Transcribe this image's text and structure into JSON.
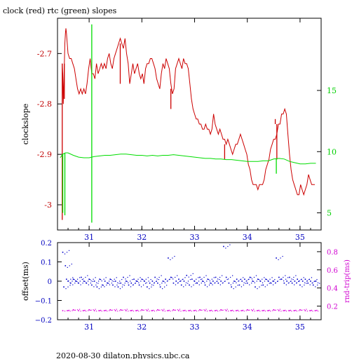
{
  "title": "clock (red) rtc (green) slopes",
  "footer": "2020-08-30  dilaton.physics.ubc.ca",
  "chart_data": [
    {
      "type": "line",
      "title": "clock (red) rtc (green) slopes",
      "xlabel": "",
      "ylabel": "clockslope",
      "y2label": "",
      "xlim": [
        30.4,
        35.4
      ],
      "ylim": [
        -3.05,
        -2.63
      ],
      "y2lim": [
        3.6,
        20.9
      ],
      "x_ticks": [
        "31",
        "32",
        "33",
        "34",
        "35"
      ],
      "y_ticks": [
        "-2.7",
        "-2.8",
        "-2.9",
        "-3"
      ],
      "y2_ticks": [
        "15",
        "10",
        "5"
      ],
      "colors": {
        "clock": "#cc0000",
        "rtc": "#00dd00"
      },
      "series": [
        {
          "axis": "left",
          "color": "#cc0000",
          "x": [
            30.49,
            30.5,
            30.51,
            30.52,
            30.53,
            30.54,
            30.55,
            30.56,
            30.57,
            30.6,
            30.63,
            30.66,
            30.69,
            30.72,
            30.75,
            30.78,
            30.81,
            30.84,
            30.87,
            30.9,
            30.93,
            30.96,
            30.99,
            31.02,
            31.05,
            31.08,
            31.11,
            31.14,
            31.17,
            31.2,
            31.23,
            31.26,
            31.29,
            31.32,
            31.35,
            31.38,
            31.41,
            31.44,
            31.47,
            31.5,
            31.53,
            31.56,
            31.59,
            31.62,
            31.65,
            31.68,
            31.71,
            31.74,
            31.77,
            31.8,
            31.83,
            31.86,
            31.89,
            31.92,
            31.95,
            31.98,
            32.01,
            32.04,
            32.07,
            32.1,
            32.13,
            32.16,
            32.19,
            32.22,
            32.25,
            32.28,
            32.31,
            32.34,
            32.37,
            32.4,
            32.43,
            32.46,
            32.49,
            32.52,
            32.55,
            32.58,
            32.61,
            32.64,
            32.67,
            32.7,
            32.73,
            32.76,
            32.79,
            32.82,
            32.85,
            32.88,
            32.91,
            32.94,
            32.97,
            33.0,
            33.03,
            33.06,
            33.09,
            33.12,
            33.15,
            33.18,
            33.21,
            33.24,
            33.27,
            33.3,
            33.33,
            33.36,
            33.39,
            33.42,
            33.45,
            33.48,
            33.51,
            33.54,
            33.57,
            33.6,
            33.63,
            33.66,
            33.69,
            33.72,
            33.75,
            33.78,
            33.81,
            33.84,
            33.87,
            33.9,
            33.93,
            33.96,
            33.99,
            34.02,
            34.05,
            34.08,
            34.11,
            34.14,
            34.17,
            34.2,
            34.23,
            34.26,
            34.29,
            34.32,
            34.35,
            34.38,
            34.41,
            34.44,
            34.47,
            34.5,
            34.53,
            34.56,
            34.59,
            34.62,
            34.65,
            34.68,
            34.71,
            34.74,
            34.77,
            34.8,
            34.83,
            34.86,
            34.89,
            34.92,
            34.95,
            34.98,
            35.01,
            35.04,
            35.07,
            35.1,
            35.13,
            35.16,
            35.19,
            35.22,
            35.25,
            35.28
          ],
          "y": [
            -2.72,
            -2.74,
            -2.8,
            -2.76,
            -2.72,
            -2.68,
            -2.66,
            -2.65,
            -2.66,
            -2.7,
            -2.71,
            -2.71,
            -2.72,
            -2.73,
            -2.75,
            -2.77,
            -2.78,
            -2.77,
            -2.78,
            -2.77,
            -2.78,
            -2.76,
            -2.73,
            -2.71,
            -2.74,
            -2.74,
            -2.75,
            -2.72,
            -2.74,
            -2.73,
            -2.72,
            -2.73,
            -2.72,
            -2.73,
            -2.71,
            -2.7,
            -2.72,
            -2.73,
            -2.71,
            -2.7,
            -2.69,
            -2.68,
            -2.67,
            -2.68,
            -2.69,
            -2.67,
            -2.7,
            -2.72,
            -2.76,
            -2.74,
            -2.72,
            -2.74,
            -2.73,
            -2.72,
            -2.74,
            -2.75,
            -2.74,
            -2.76,
            -2.73,
            -2.72,
            -2.72,
            -2.71,
            -2.71,
            -2.72,
            -2.73,
            -2.75,
            -2.76,
            -2.77,
            -2.74,
            -2.72,
            -2.73,
            -2.71,
            -2.72,
            -2.73,
            -2.76,
            -2.78,
            -2.77,
            -2.73,
            -2.72,
            -2.71,
            -2.72,
            -2.73,
            -2.71,
            -2.72,
            -2.72,
            -2.73,
            -2.76,
            -2.79,
            -2.81,
            -2.82,
            -2.83,
            -2.83,
            -2.84,
            -2.84,
            -2.85,
            -2.85,
            -2.84,
            -2.85,
            -2.85,
            -2.86,
            -2.85,
            -2.82,
            -2.84,
            -2.85,
            -2.86,
            -2.85,
            -2.86,
            -2.87,
            -2.87,
            -2.88,
            -2.87,
            -2.88,
            -2.89,
            -2.9,
            -2.89,
            -2.88,
            -2.88,
            -2.87,
            -2.86,
            -2.87,
            -2.88,
            -2.89,
            -2.9,
            -2.92,
            -2.93,
            -2.95,
            -2.96,
            -2.96,
            -2.96,
            -2.97,
            -2.96,
            -2.96,
            -2.96,
            -2.95,
            -2.93,
            -2.92,
            -2.91,
            -2.89,
            -2.88,
            -2.87,
            -2.87,
            -2.86,
            -2.84,
            -2.84,
            -2.82,
            -2.82,
            -2.81,
            -2.82,
            -2.86,
            -2.9,
            -2.93,
            -2.95,
            -2.96,
            -2.97,
            -2.98,
            -2.98,
            -2.96,
            -2.97,
            -2.98,
            -2.97,
            -2.96,
            -2.94,
            -2.95,
            -2.96,
            -2.96,
            -2.96
          ],
          "spikes": [
            {
              "x": 30.49,
              "from": -2.72,
              "to": -3.03
            },
            {
              "x": 30.53,
              "from": -2.72,
              "to": -2.79
            },
            {
              "x": 31.59,
              "from": -2.68,
              "to": -2.76
            },
            {
              "x": 32.55,
              "from": -2.77,
              "to": -2.81
            },
            {
              "x": 33.57,
              "from": -2.88,
              "to": -2.91
            },
            {
              "x": 34.53,
              "from": -2.84,
              "to": -2.83
            },
            {
              "x": 34.56,
              "from": -2.84,
              "to": -2.91
            }
          ]
        },
        {
          "axis": "right",
          "color": "#00dd00",
          "x": [
            30.45,
            30.5,
            30.55,
            30.6,
            30.7,
            30.8,
            30.9,
            31.0,
            31.1,
            31.2,
            31.3,
            31.4,
            31.5,
            31.6,
            31.7,
            31.8,
            31.9,
            32.0,
            32.1,
            32.2,
            32.3,
            32.4,
            32.5,
            32.6,
            32.7,
            32.8,
            32.9,
            33.0,
            33.1,
            33.2,
            33.3,
            33.4,
            33.5,
            33.6,
            33.7,
            33.8,
            33.9,
            34.0,
            34.1,
            34.2,
            34.3,
            34.4,
            34.5,
            34.6,
            34.7,
            34.8,
            34.9,
            35.0,
            35.1,
            35.2,
            35.3
          ],
          "y": [
            9.5,
            9.8,
            9.9,
            9.9,
            9.7,
            9.55,
            9.5,
            9.5,
            9.6,
            9.65,
            9.7,
            9.7,
            9.75,
            9.8,
            9.8,
            9.75,
            9.7,
            9.7,
            9.65,
            9.7,
            9.65,
            9.7,
            9.7,
            9.75,
            9.7,
            9.65,
            9.6,
            9.55,
            9.5,
            9.45,
            9.45,
            9.4,
            9.4,
            9.35,
            9.35,
            9.3,
            9.25,
            9.2,
            9.2,
            9.2,
            9.25,
            9.25,
            9.4,
            9.45,
            9.4,
            9.2,
            9.1,
            9.0,
            9.0,
            9.05,
            9.05
          ],
          "spikes": [
            {
              "x": 30.5,
              "from": 9.8,
              "to": 5.0
            },
            {
              "x": 30.54,
              "from": 9.9,
              "to": 4.8
            },
            {
              "x": 31.05,
              "from": 9.5,
              "to": 20.4
            },
            {
              "x": 31.05,
              "from": 9.5,
              "to": 4.2
            },
            {
              "x": 34.55,
              "from": 9.4,
              "to": 8.2
            }
          ]
        }
      ]
    },
    {
      "type": "scatter",
      "xlabel": "",
      "ylabel": "offset(ms)",
      "y2label": "rnd-trip(ms)",
      "xlim": [
        30.4,
        35.4
      ],
      "ylim": [
        -0.2,
        0.2
      ],
      "y2lim": [
        0.05,
        0.9
      ],
      "x_ticks": [
        "31",
        "32",
        "33",
        "34",
        "35"
      ],
      "y_ticks": [
        "0.2",
        "0.1",
        "0",
        "−0.1",
        "−0.2"
      ],
      "y2_ticks": [
        "0.8",
        "0.6",
        "0.4",
        "0.2"
      ],
      "colors": {
        "offset": "#0000cc",
        "roundtrip": "#dd00dd"
      },
      "series": [
        {
          "axis": "left",
          "color": "#0000cc",
          "x": [
            30.5,
            30.52,
            30.55,
            30.57,
            30.6,
            30.65,
            30.7,
            30.75,
            30.8,
            30.85,
            30.9,
            30.95,
            31.0,
            31.05,
            31.1,
            31.15,
            31.2,
            31.25,
            31.3,
            31.35,
            31.4,
            31.45,
            31.5,
            31.55,
            31.6,
            31.65,
            31.7,
            31.75,
            31.8,
            31.85,
            31.9,
            31.95,
            32.0,
            32.05,
            32.1,
            32.15,
            32.2,
            32.25,
            32.3,
            32.35,
            32.4,
            32.45,
            32.5,
            32.55,
            32.6,
            32.65,
            32.7,
            32.75,
            32.8,
            32.85,
            32.9,
            32.95,
            33.0,
            33.05,
            33.1,
            33.15,
            33.2,
            33.25,
            33.3,
            33.35,
            33.4,
            33.45,
            33.5,
            33.55,
            33.6,
            33.65,
            33.7,
            33.75,
            33.8,
            33.85,
            33.9,
            33.95,
            34.0,
            34.05,
            34.1,
            34.15,
            34.2,
            34.25,
            34.3,
            34.35,
            34.4,
            34.45,
            34.5,
            34.55,
            34.6,
            34.65,
            34.7,
            34.75,
            34.8,
            34.85,
            34.9,
            34.95,
            35.0,
            35.05,
            35.1,
            35.15,
            35.2,
            35.25,
            35.3
          ],
          "y": [
            0.15,
            -0.03,
            0.08,
            0.01,
            0.0,
            -0.01,
            0.01,
            0.0,
            -0.01,
            0.02,
            0.0,
            -0.01,
            0.01,
            -0.02,
            0.0,
            -0.03,
            0.01,
            -0.02,
            0.0,
            -0.01,
            0.01,
            -0.02,
            0.0,
            -0.03,
            -0.01,
            0.02,
            0.0,
            -0.02,
            -0.01,
            0.01,
            0.0,
            -0.02,
            0.01,
            0.0,
            -0.03,
            -0.01,
            0.0,
            0.02,
            -0.01,
            -0.03,
            0.0,
            0.01,
            0.12,
            0.02,
            -0.01,
            0.0,
            0.01,
            -0.02,
            0.0,
            0.03,
            -0.02,
            0.01,
            0.0,
            -0.01,
            0.02,
            0.0,
            -0.02,
            0.01,
            -0.01,
            0.0,
            0.02,
            -0.01,
            0.0,
            0.18,
            0.02,
            -0.01,
            -0.03,
            0.0,
            0.01,
            -0.02,
            0.0,
            0.01,
            -0.01,
            0.02,
            0.0,
            -0.03,
            0.01,
            0.0,
            -0.02,
            0.01,
            0.0,
            -0.01,
            0.0,
            0.12,
            0.02,
            0.01,
            -0.01,
            0.0,
            0.02,
            -0.01,
            0.0,
            0.01,
            -0.02,
            0.0,
            0.01,
            -0.01,
            0.0,
            -0.02,
            0.0
          ]
        },
        {
          "axis": "right",
          "color": "#dd00dd",
          "x": [
            30.5,
            30.6,
            30.7,
            30.8,
            30.9,
            31.0,
            31.1,
            31.2,
            31.3,
            31.4,
            31.5,
            31.6,
            31.7,
            31.8,
            31.9,
            32.0,
            32.1,
            32.2,
            32.3,
            32.4,
            32.5,
            32.6,
            32.7,
            32.8,
            32.9,
            33.0,
            33.1,
            33.2,
            33.3,
            33.4,
            33.5,
            33.6,
            33.7,
            33.8,
            33.9,
            34.0,
            34.1,
            34.2,
            34.3,
            34.4,
            34.5,
            34.6,
            34.7,
            34.8,
            34.9,
            35.0,
            35.1,
            35.2,
            35.3
          ],
          "y": [
            0.15,
            0.15,
            0.16,
            0.15,
            0.15,
            0.16,
            0.15,
            0.15,
            0.15,
            0.16,
            0.15,
            0.16,
            0.15,
            0.15,
            0.15,
            0.16,
            0.15,
            0.15,
            0.16,
            0.15,
            0.15,
            0.16,
            0.15,
            0.15,
            0.15,
            0.15,
            0.16,
            0.15,
            0.15,
            0.15,
            0.16,
            0.15,
            0.15,
            0.15,
            0.15,
            0.16,
            0.15,
            0.15,
            0.15,
            0.15,
            0.16,
            0.15,
            0.15,
            0.15,
            0.15,
            0.16,
            0.15,
            0.15,
            0.15
          ]
        }
      ]
    }
  ]
}
